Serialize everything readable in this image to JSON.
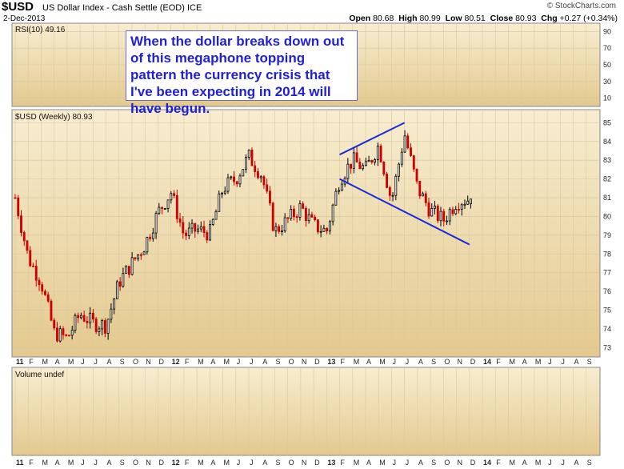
{
  "header": {
    "symbol": "$USD",
    "description": "US Dollar Index - Cash Settle (EOD)  ICE",
    "date": "2-Dec-2013",
    "watermark": "© StockCharts.com",
    "open_label": "Open",
    "open": "80.68",
    "high_label": "High",
    "high": "80.99",
    "low_label": "Low",
    "low": "80.51",
    "close_label": "Close",
    "close": "80.93",
    "chg_label": "Chg",
    "chg": "+0.27 (+0.34%)"
  },
  "annotation": "When the dollar breaks down out of this megaphone topping pattern the currency crisis that I've been expecting in 2014 will have begun.",
  "chart_data": [
    {
      "type": "line",
      "panel": "RSI",
      "label": "RSI(10) 49.16",
      "y_ticks": [
        10,
        30,
        50,
        70,
        90
      ],
      "ylim": [
        0,
        100
      ],
      "values_visible": false
    },
    {
      "type": "candlestick",
      "panel": "price",
      "label": "$USD (Weekly) 80.93",
      "y_ticks": [
        73,
        74,
        75,
        76,
        77,
        78,
        79,
        80,
        81,
        82,
        83,
        84,
        85
      ],
      "ylim": [
        72.5,
        85.7
      ],
      "x_ticks": [
        "11",
        "F",
        "M",
        "A",
        "M",
        "J",
        "J",
        "A",
        "S",
        "O",
        "N",
        "D",
        "12",
        "F",
        "M",
        "A",
        "M",
        "J",
        "J",
        "A",
        "S",
        "O",
        "N",
        "D",
        "13",
        "F",
        "M",
        "A",
        "M",
        "J",
        "J",
        "A",
        "S",
        "O",
        "N",
        "D",
        "14",
        "F",
        "M",
        "A",
        "M",
        "J",
        "J",
        "A",
        "S"
      ],
      "close_path": [
        [
          "2011-01",
          81.0
        ],
        [
          "2011-02",
          77.8
        ],
        [
          "2011-03",
          76.5
        ],
        [
          "2011-04",
          73.8
        ],
        [
          "2011-05",
          73.5
        ],
        [
          "2011-06",
          74.8
        ],
        [
          "2011-07",
          74.3
        ],
        [
          "2011-08",
          74.2
        ],
        [
          "2011-09",
          76.5
        ],
        [
          "2011-10",
          77.5
        ],
        [
          "2011-11",
          78.5
        ],
        [
          "2011-12",
          80.2
        ],
        [
          "2012-01",
          81.3
        ],
        [
          "2012-02",
          79.0
        ],
        [
          "2012-03",
          79.3
        ],
        [
          "2012-04",
          79.1
        ],
        [
          "2012-05",
          81.5
        ],
        [
          "2012-06",
          82.0
        ],
        [
          "2012-07",
          83.2
        ],
        [
          "2012-08",
          82.2
        ],
        [
          "2012-09",
          79.2
        ],
        [
          "2012-10",
          79.8
        ],
        [
          "2012-11",
          80.5
        ],
        [
          "2012-12",
          79.5
        ],
        [
          "2013-01",
          79.2
        ],
        [
          "2013-02",
          82.0
        ],
        [
          "2013-03",
          83.0
        ],
        [
          "2013-04",
          82.5
        ],
        [
          "2013-05",
          83.8
        ],
        [
          "2013-06",
          80.8
        ],
        [
          "2013-07",
          84.4
        ],
        [
          "2013-08",
          81.5
        ],
        [
          "2013-09",
          80.3
        ],
        [
          "2013-10",
          79.8
        ],
        [
          "2013-11",
          80.8
        ],
        [
          "2013-12",
          80.93
        ]
      ],
      "trendlines": [
        {
          "from": [
            "2013-02",
            83.3
          ],
          "to": [
            "2013-07",
            85.0
          ]
        },
        {
          "from": [
            "2013-02",
            82.0
          ],
          "to": [
            "2013-12",
            78.5
          ]
        }
      ],
      "colors": {
        "up": "#000000",
        "down": "#cc0000",
        "trendline": "#1a2bd8"
      }
    },
    {
      "type": "bar",
      "panel": "volume",
      "label": "Volume undef",
      "values_visible": false
    }
  ]
}
